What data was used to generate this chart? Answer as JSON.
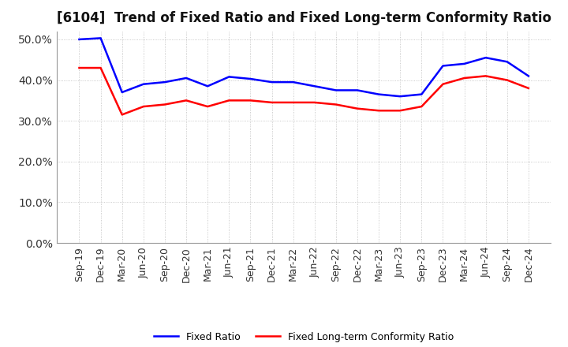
{
  "title": "[6104]  Trend of Fixed Ratio and Fixed Long-term Conformity Ratio",
  "x_labels": [
    "Sep-19",
    "Dec-19",
    "Mar-20",
    "Jun-20",
    "Sep-20",
    "Dec-20",
    "Mar-21",
    "Jun-21",
    "Sep-21",
    "Dec-21",
    "Mar-22",
    "Jun-22",
    "Sep-22",
    "Dec-22",
    "Mar-23",
    "Jun-23",
    "Sep-23",
    "Dec-23",
    "Mar-24",
    "Jun-24",
    "Sep-24",
    "Dec-24"
  ],
  "fixed_ratio": [
    50.0,
    50.3,
    37.0,
    39.0,
    39.5,
    40.5,
    38.5,
    40.8,
    40.3,
    39.5,
    39.5,
    38.5,
    37.5,
    37.5,
    36.5,
    36.0,
    36.5,
    43.5,
    44.0,
    45.5,
    44.5,
    41.0
  ],
  "fixed_lt_conformity": [
    43.0,
    43.0,
    31.5,
    33.5,
    34.0,
    35.0,
    33.5,
    35.0,
    35.0,
    34.5,
    34.5,
    34.5,
    34.0,
    33.0,
    32.5,
    32.5,
    33.5,
    39.0,
    40.5,
    41.0,
    40.0,
    38.0
  ],
  "fixed_ratio_color": "#0000FF",
  "fixed_lt_conformity_color": "#FF0000",
  "background_color": "#FFFFFF",
  "grid_color": "#BBBBBB",
  "ylim": [
    0,
    52
  ],
  "yticks": [
    0.0,
    10.0,
    20.0,
    30.0,
    40.0,
    50.0
  ],
  "line_width": 1.8,
  "title_fontsize": 12,
  "tick_fontsize": 9,
  "legend_fontsize": 9
}
